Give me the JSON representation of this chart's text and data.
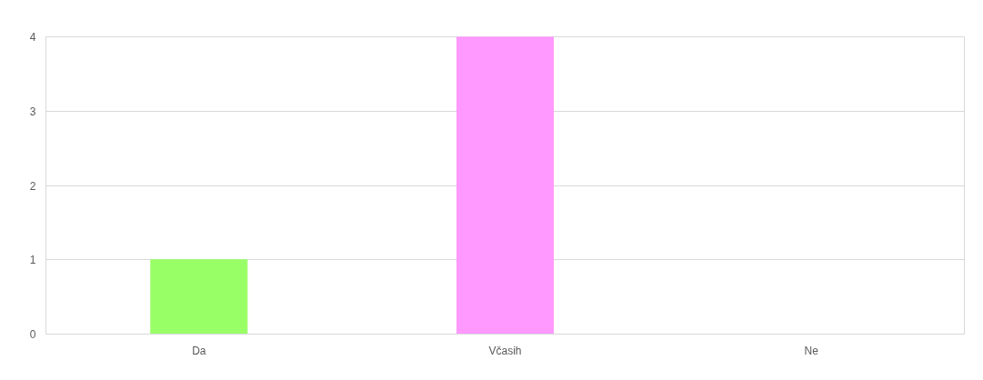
{
  "chart_data": {
    "type": "bar",
    "categories": [
      "Da",
      "Včasih",
      "Ne"
    ],
    "values": [
      1,
      4,
      0
    ],
    "colors": [
      "#99ff66",
      "#ff99ff",
      "#66ccff"
    ],
    "ylim": [
      0,
      4
    ],
    "yticks": [
      0,
      1,
      2,
      3,
      4
    ],
    "grid": "y"
  }
}
